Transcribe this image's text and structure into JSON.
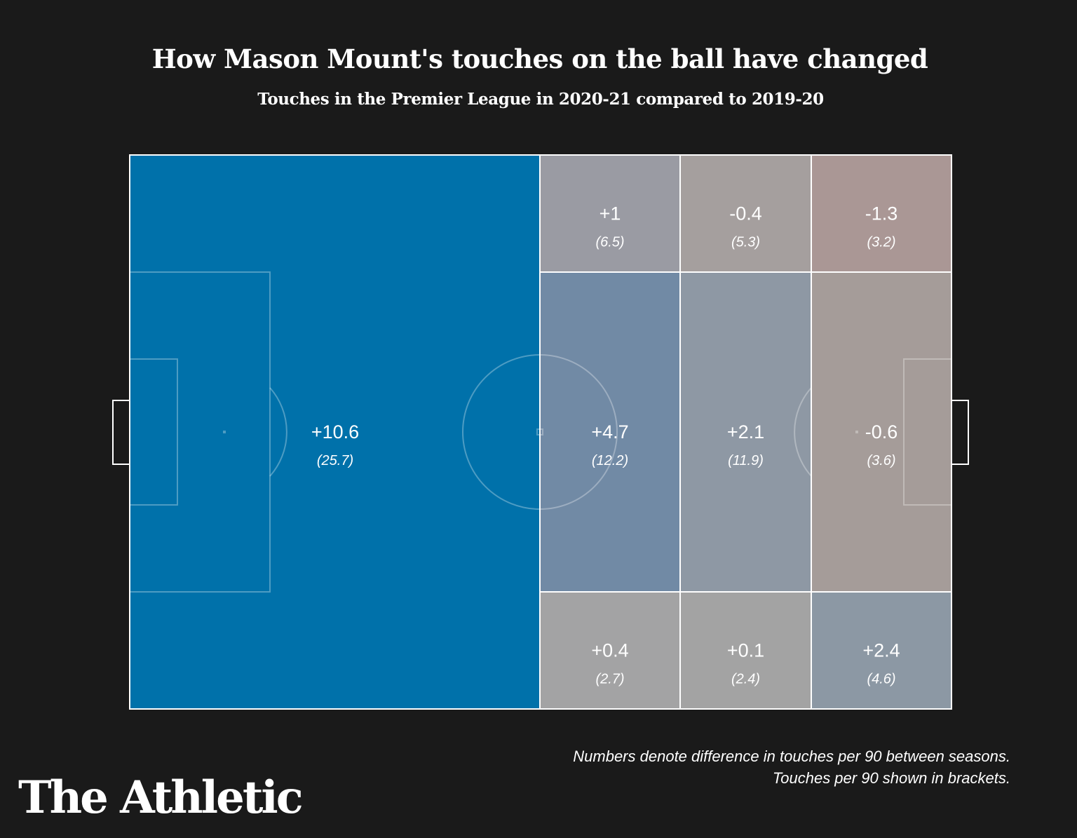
{
  "chart_data": {
    "type": "heatmap",
    "title": "How Mason Mount's touches on the ball have changed",
    "subtitle": "Touches in the Premier League in 2020-21 compared to 2019-20",
    "background": "#1a1a1a",
    "zones": [
      {
        "zone": "own-half",
        "diff": "+10.6",
        "per90": "(25.7)",
        "color": "#0071aa"
      },
      {
        "zone": "col1-top",
        "diff": "+1",
        "per90": "(6.5)",
        "color": "#9a9ba3"
      },
      {
        "zone": "col2-top",
        "diff": "-0.4",
        "per90": "(5.3)",
        "color": "#a59f9e"
      },
      {
        "zone": "col3-top",
        "diff": "-1.3",
        "per90": "(3.2)",
        "color": "#aa9795"
      },
      {
        "zone": "col1-middle",
        "diff": "+4.7",
        "per90": "(12.2)",
        "color": "#718aa5"
      },
      {
        "zone": "col2-middle",
        "diff": "+2.1",
        "per90": "(11.9)",
        "color": "#8e98a4"
      },
      {
        "zone": "col3-middle",
        "diff": "-0.6",
        "per90": "(3.6)",
        "color": "#a59c99"
      },
      {
        "zone": "col1-bottom",
        "diff": "+0.4",
        "per90": "(2.7)",
        "color": "#a3a3a4"
      },
      {
        "zone": "col2-bottom",
        "diff": "+0.1",
        "per90": "(2.4)",
        "color": "#a3a3a3"
      },
      {
        "zone": "col3-bottom",
        "diff": "+2.4",
        "per90": "(4.6)",
        "color": "#8c98a4"
      }
    ]
  },
  "notes": {
    "line1": "Numbers denote difference in touches per 90 between seasons.",
    "line2": "Touches per 90 shown in brackets."
  },
  "logo": "The Athletic"
}
